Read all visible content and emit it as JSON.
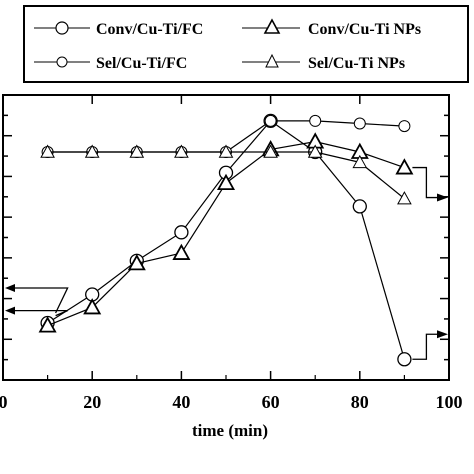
{
  "chart_data": {
    "type": "line",
    "xlabel": "time (min)",
    "xlim": [
      0,
      100
    ],
    "x_ticks": [
      "0",
      "20",
      "40",
      "60",
      "80",
      "100"
    ],
    "y_ticks_visible": false,
    "grid": false,
    "legend_position": "top",
    "series": [
      {
        "name": "Conv/Cu-Ti/FC",
        "marker": "circle",
        "marker_size": "large",
        "axis": "left",
        "x": [
          10,
          20,
          30,
          40,
          50,
          60,
          70,
          80,
          90
        ],
        "y": [
          22,
          33,
          46,
          57,
          80,
          100,
          88,
          67,
          8
        ]
      },
      {
        "name": "Conv/Cu-Ti NPs",
        "marker": "triangle",
        "marker_size": "large",
        "axis": "left",
        "x": [
          10,
          20,
          30,
          40,
          50,
          60,
          70,
          80,
          90
        ],
        "y": [
          21,
          28,
          45,
          49,
          76,
          89,
          92,
          88,
          82
        ]
      },
      {
        "name": "Sel/Cu-Ti/FC",
        "marker": "circle",
        "marker_size": "small",
        "axis": "right",
        "x": [
          10,
          20,
          30,
          40,
          50,
          60,
          70,
          80,
          90
        ],
        "y": [
          88,
          88,
          88,
          88,
          88,
          100,
          100,
          99,
          98
        ]
      },
      {
        "name": "Sel/Cu-Ti NPs",
        "marker": "triangle",
        "marker_size": "small",
        "axis": "right",
        "x": [
          10,
          20,
          30,
          40,
          50,
          60,
          70,
          80,
          90
        ],
        "y": [
          88,
          88,
          88,
          88,
          88,
          88,
          88,
          84,
          70
        ]
      }
    ],
    "axis_arrows": [
      {
        "points_to": "left"
      },
      {
        "points_to": "left"
      },
      {
        "points_to": "right"
      },
      {
        "points_to": "right"
      }
    ]
  }
}
